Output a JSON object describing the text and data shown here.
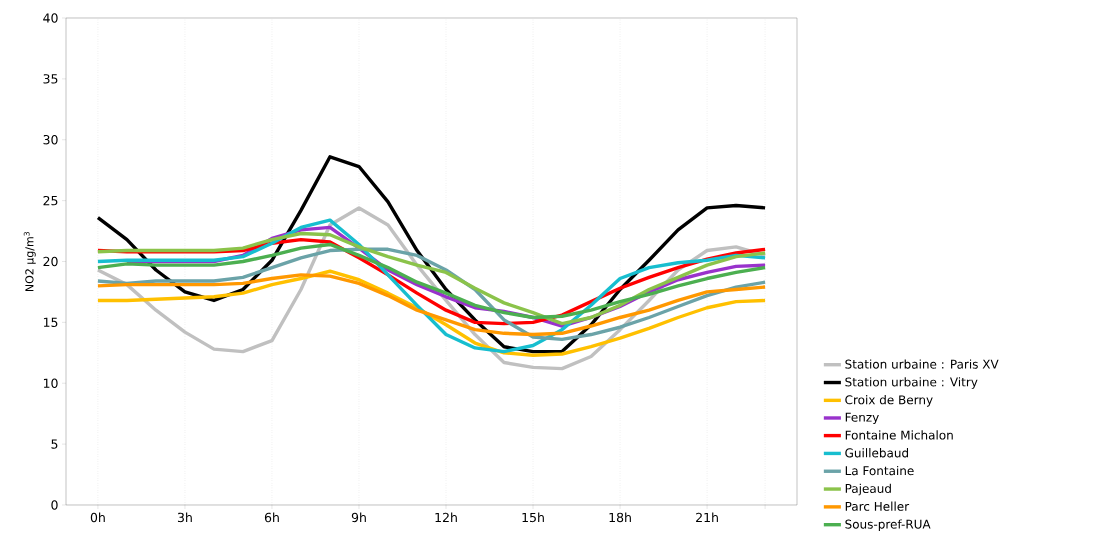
{
  "chart_data": {
    "type": "line",
    "ylabel": "NO2 µg/m$^{3}$",
    "x": [
      0,
      1,
      2,
      3,
      4,
      5,
      6,
      7,
      8,
      9,
      10,
      11,
      12,
      13,
      14,
      15,
      16,
      17,
      18,
      19,
      20,
      21,
      22,
      23
    ],
    "xlim": [
      -1.1,
      24.1
    ],
    "ylim": [
      0,
      40
    ],
    "xticks": [
      {
        "value": 0,
        "label": "0h"
      },
      {
        "value": 3,
        "label": "3h"
      },
      {
        "value": 6,
        "label": "6h"
      },
      {
        "value": 9,
        "label": "9h"
      },
      {
        "value": 12,
        "label": "12h"
      },
      {
        "value": 15,
        "label": "15h"
      },
      {
        "value": 18,
        "label": "18h"
      },
      {
        "value": 21,
        "label": "21h"
      },
      {
        "value": 23,
        "label": null
      }
    ],
    "yticks": [
      0,
      5,
      10,
      15,
      20,
      25,
      30,
      35,
      40
    ],
    "grid": "x",
    "legend": "right",
    "marker": "none",
    "line_style": "solid",
    "series": [
      {
        "name": "Station urbaine : Paris XV",
        "color": "#c0c0c0",
        "values": [
          19.3,
          18.1,
          16.0,
          14.2,
          12.8,
          12.6,
          13.5,
          17.7,
          23.0,
          24.4,
          23.0,
          19.7,
          16.8,
          14.0,
          11.7,
          11.3,
          11.2,
          12.2,
          14.4,
          16.8,
          19.3,
          20.9,
          21.2,
          20.5
        ]
      },
      {
        "name": "Station urbaine : Vitry",
        "color": "#000000",
        "values": [
          23.6,
          21.8,
          19.3,
          17.5,
          16.8,
          17.7,
          20.1,
          24.2,
          28.6,
          27.8,
          24.9,
          20.9,
          17.7,
          15.2,
          13.0,
          12.6,
          12.6,
          14.8,
          17.7,
          20.1,
          22.6,
          24.4,
          24.6,
          24.4
        ]
      },
      {
        "name": "Croix de Berny",
        "color": "#ffc000",
        "values": [
          16.8,
          16.8,
          16.9,
          17.0,
          17.1,
          17.4,
          18.1,
          18.6,
          19.2,
          18.5,
          17.4,
          16.2,
          14.8,
          13.3,
          12.5,
          12.3,
          12.4,
          13.0,
          13.7,
          14.5,
          15.4,
          16.2,
          16.7,
          16.8
        ]
      },
      {
        "name": "Fenzy",
        "color": "#9932cc",
        "values": [
          null,
          20.0,
          20.0,
          20.0,
          20.0,
          20.5,
          21.9,
          22.6,
          22.8,
          21.1,
          19.3,
          18.1,
          17.1,
          16.2,
          15.9,
          15.4,
          14.7,
          15.4,
          16.3,
          17.5,
          18.5,
          19.1,
          19.6,
          19.7
        ]
      },
      {
        "name": "Fontaine Michalon",
        "color": "#ff0000",
        "values": [
          20.9,
          20.8,
          20.8,
          20.8,
          20.8,
          20.9,
          21.5,
          21.8,
          21.6,
          20.3,
          18.9,
          17.4,
          16.0,
          15.0,
          14.9,
          15.0,
          15.6,
          16.7,
          17.8,
          18.7,
          19.5,
          20.2,
          20.7,
          21.0
        ]
      },
      {
        "name": "Guillebaud",
        "color": "#17becf",
        "values": [
          20.0,
          20.1,
          20.1,
          20.1,
          20.1,
          20.4,
          21.5,
          22.8,
          23.4,
          21.4,
          18.9,
          16.4,
          14.0,
          12.9,
          12.6,
          13.1,
          14.4,
          16.4,
          18.6,
          19.5,
          19.9,
          20.1,
          20.5,
          20.3
        ]
      },
      {
        "name": "La Fontaine",
        "color": "#6ba3a8",
        "values": [
          18.4,
          18.2,
          18.4,
          18.4,
          18.4,
          18.7,
          19.5,
          20.3,
          20.9,
          21.0,
          21.0,
          20.5,
          19.3,
          17.7,
          15.2,
          13.8,
          13.6,
          14.0,
          14.6,
          15.4,
          16.3,
          17.2,
          17.9,
          18.3
        ]
      },
      {
        "name": "Pajeaud",
        "color": "#8bc34a",
        "values": [
          20.8,
          20.9,
          20.9,
          20.9,
          20.9,
          21.1,
          21.8,
          22.3,
          22.2,
          21.2,
          20.4,
          19.7,
          19.1,
          17.8,
          16.6,
          15.8,
          14.9,
          15.4,
          16.4,
          17.7,
          18.7,
          19.7,
          20.4,
          20.7
        ]
      },
      {
        "name": "Parc Heller",
        "color": "#ff9800",
        "values": [
          18.0,
          18.1,
          18.1,
          18.1,
          18.1,
          18.2,
          18.6,
          18.9,
          18.8,
          18.2,
          17.2,
          16.0,
          15.2,
          14.4,
          14.1,
          14.0,
          14.1,
          14.7,
          15.4,
          16.0,
          16.8,
          17.5,
          17.7,
          17.9
        ]
      },
      {
        "name": "Sous-pref-RUA",
        "color": "#4caf50",
        "values": [
          19.5,
          19.8,
          19.7,
          19.7,
          19.7,
          20.0,
          20.5,
          21.1,
          21.4,
          20.5,
          19.5,
          18.3,
          17.4,
          16.4,
          15.8,
          15.4,
          15.5,
          16.0,
          16.7,
          17.3,
          18.0,
          18.6,
          19.1,
          19.5
        ]
      }
    ]
  }
}
